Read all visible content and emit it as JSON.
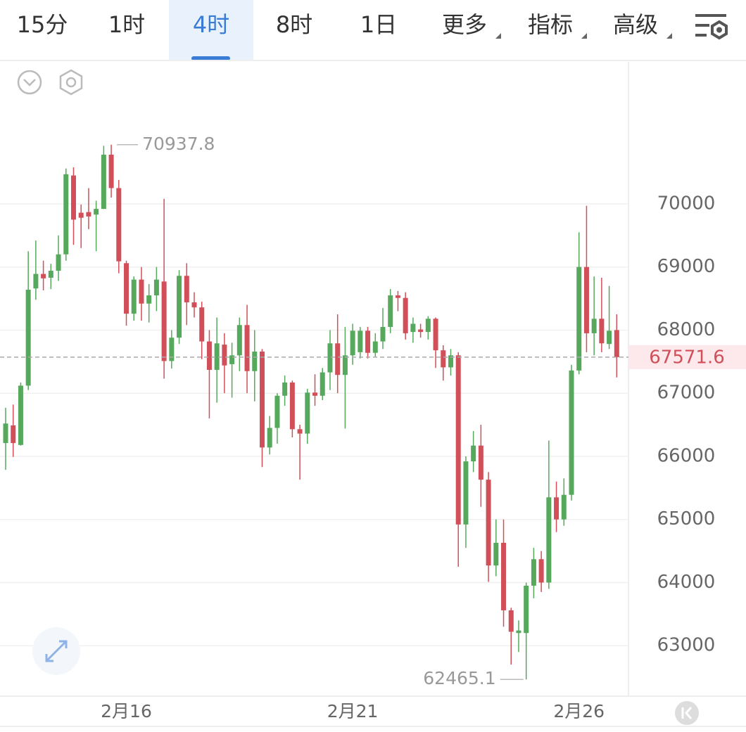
{
  "toolbar": {
    "tabs": [
      "15分",
      "1时",
      "4时",
      "8时",
      "1日",
      "更多",
      "指标",
      "高级"
    ],
    "active": 2
  },
  "chart_data": {
    "type": "candlestick",
    "up_color": "#56a95c",
    "down_color": "#d04f58",
    "categories": [
      null,
      null,
      null,
      null,
      null,
      null,
      null,
      null,
      null,
      null,
      null,
      null,
      null,
      null,
      null,
      null,
      "2月16",
      null,
      null,
      null,
      null,
      null,
      null,
      null,
      null,
      null,
      null,
      null,
      null,
      null,
      null,
      null,
      null,
      null,
      null,
      null,
      null,
      null,
      null,
      null,
      null,
      null,
      null,
      null,
      null,
      null,
      "2月21",
      null,
      null,
      null,
      null,
      null,
      null,
      null,
      null,
      null,
      null,
      null,
      null,
      null,
      null,
      null,
      null,
      null,
      null,
      null,
      null,
      null,
      null,
      null,
      null,
      null,
      null,
      null,
      null,
      null,
      "2月26",
      null,
      null,
      null,
      null,
      null
    ],
    "open": [
      66210,
      66490,
      66180,
      67120,
      68660,
      68890,
      68830,
      68940,
      69200,
      70450,
      69860,
      69870,
      69830,
      69920,
      70780,
      70250,
      69060,
      68260,
      68800,
      68420,
      68550,
      68770,
      67510,
      67880,
      68860,
      68440,
      68360,
      67820,
      67370,
      67770,
      67460,
      67600,
      68080,
      67350,
      67660,
      66140,
      66450,
      66960,
      67170,
      66430,
      66360,
      67010,
      66960,
      67330,
      67790,
      67290,
      67600,
      67650,
      67990,
      67640,
      67820,
      68050,
      68550,
      68510,
      67970,
      68010,
      67970,
      68180,
      67680,
      67410,
      67600,
      64920,
      65920,
      66170,
      65630,
      64270,
      64630,
      63560,
      63200,
      63200,
      63950,
      64370,
      64000,
      65350,
      65000,
      65390,
      67360,
      69000,
      67950,
      68180,
      67780,
      68000
    ],
    "high": [
      66770,
      66820,
      67170,
      69250,
      69420,
      69100,
      69050,
      69500,
      70560,
      70580,
      69990,
      70250,
      70050,
      70920,
      70937.8,
      70380,
      69100,
      68850,
      69000,
      68730,
      69000,
      70080,
      68000,
      68950,
      69060,
      68600,
      68450,
      68000,
      68200,
      67950,
      67800,
      68200,
      68400,
      68000,
      67700,
      66640,
      67000,
      67280,
      67200,
      66500,
      67070,
      67300,
      67400,
      68000,
      68250,
      68050,
      68100,
      68050,
      68050,
      67950,
      68350,
      68650,
      68620,
      68600,
      68200,
      68100,
      68220,
      68200,
      67760,
      67700,
      67650,
      66000,
      66400,
      66500,
      65750,
      65000,
      65000,
      63600,
      63400,
      64000,
      64550,
      64500,
      66250,
      65600,
      65650,
      67450,
      69550,
      69970,
      68850,
      68830,
      68700,
      68250
    ],
    "low": [
      65785,
      65990,
      66170,
      67050,
      68480,
      68630,
      68650,
      68780,
      69100,
      69350,
      69300,
      69600,
      69250,
      69920,
      70100,
      68900,
      68070,
      68150,
      68150,
      68120,
      68300,
      67230,
      67390,
      67780,
      68080,
      68200,
      67540,
      66600,
      66850,
      67000,
      66930,
      67350,
      67000,
      66870,
      65830,
      66030,
      66200,
      66800,
      66300,
      65630,
      66200,
      66800,
      66890,
      67050,
      67000,
      66440,
      67450,
      67550,
      67550,
      67580,
      67700,
      67950,
      68300,
      67850,
      67800,
      67880,
      67850,
      67400,
      67200,
      67280,
      64250,
      64550,
      65750,
      65200,
      64010,
      64100,
      63300,
      62700,
      62900,
      62465.1,
      63750,
      63850,
      63900,
      64800,
      64900,
      65300,
      67300,
      67650,
      67600,
      67650,
      67700,
      67250
    ],
    "close": [
      66520,
      66210,
      67120,
      68640,
      68890,
      68820,
      68940,
      69200,
      70470,
      69750,
      69780,
      69800,
      69920,
      70780,
      70250,
      69090,
      68260,
      68800,
      68420,
      68550,
      68800,
      67510,
      67880,
      68860,
      68440,
      68360,
      67820,
      67370,
      67790,
      67440,
      67600,
      68080,
      67350,
      67660,
      66140,
      66450,
      66960,
      67170,
      66430,
      66360,
      67010,
      66960,
      67330,
      67790,
      67290,
      67600,
      67990,
      67990,
      67640,
      67820,
      68050,
      68550,
      68510,
      67950,
      68100,
      67970,
      68180,
      67680,
      67410,
      67600,
      64920,
      65920,
      66170,
      65630,
      64270,
      64630,
      63560,
      63220,
      63240,
      63950,
      64370,
      64000,
      65350,
      65000,
      65390,
      67360,
      69000,
      67950,
      68180,
      67790,
      67990,
      67571.6
    ],
    "ylim": [
      62200,
      72250
    ],
    "yticks": [
      63000,
      64000,
      65000,
      66000,
      67000,
      68000,
      69000,
      70000
    ],
    "grid": true
  }
}
